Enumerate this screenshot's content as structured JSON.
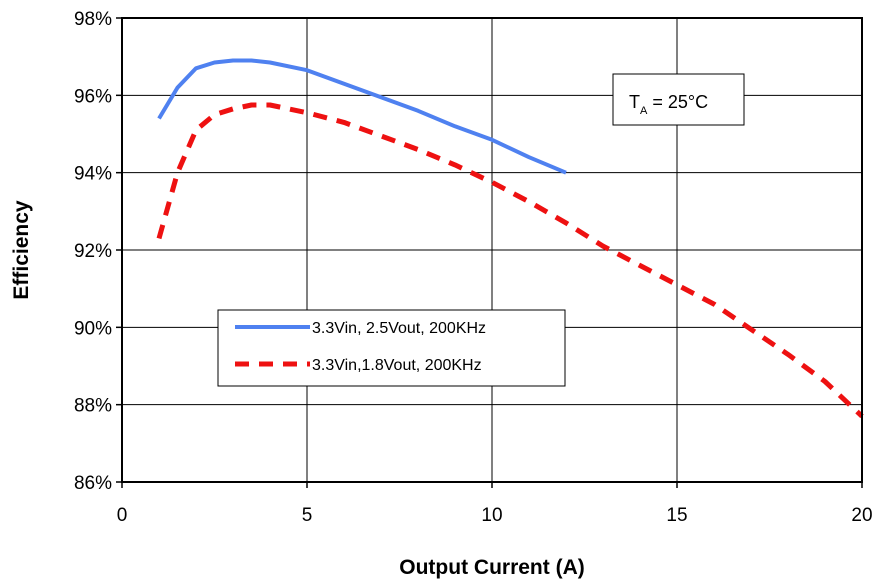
{
  "chart_data": {
    "type": "line",
    "xlabel": "Output Current (A)",
    "ylabel": "Efficiency",
    "xlim": [
      0,
      20
    ],
    "ylim": [
      86,
      98
    ],
    "x_ticks": [
      0,
      5,
      10,
      15,
      20
    ],
    "x_tick_labels": [
      "0",
      "5",
      "10",
      "15",
      "20"
    ],
    "y_ticks": [
      86,
      88,
      90,
      92,
      94,
      96,
      98
    ],
    "y_tick_labels": [
      "86%",
      "88%",
      "90%",
      "92%",
      "94%",
      "96%",
      "98%"
    ],
    "grid": true,
    "legend_placement": "center-left",
    "series": [
      {
        "name": "3.3Vin, 2.5Vout, 200KHz",
        "color": "#4f81f0",
        "style": "solid",
        "x": [
          1,
          1.5,
          2,
          2.5,
          3,
          3.5,
          4,
          5,
          6,
          7,
          8,
          9,
          10,
          11,
          12
        ],
        "y": [
          95.4,
          96.2,
          96.7,
          96.85,
          96.9,
          96.9,
          96.85,
          96.65,
          96.3,
          95.95,
          95.6,
          95.2,
          94.85,
          94.4,
          94.0
        ]
      },
      {
        "name": "3.3Vin,1.8Vout, 200KHz",
        "color": "#ee1111",
        "style": "dashed",
        "x": [
          1,
          1.5,
          2,
          2.5,
          3,
          3.5,
          4,
          5,
          6,
          7,
          8,
          9,
          10,
          11,
          12,
          13,
          14,
          15,
          16,
          17,
          18,
          19,
          20
        ],
        "y": [
          92.3,
          94.0,
          95.1,
          95.5,
          95.65,
          95.75,
          95.75,
          95.55,
          95.3,
          94.95,
          94.6,
          94.2,
          93.75,
          93.25,
          92.7,
          92.1,
          91.6,
          91.1,
          90.6,
          89.95,
          89.3,
          88.6,
          87.7
        ]
      }
    ],
    "annotation": {
      "prefix": "T",
      "subscript": "A",
      "suffix": " = 25°C"
    }
  }
}
